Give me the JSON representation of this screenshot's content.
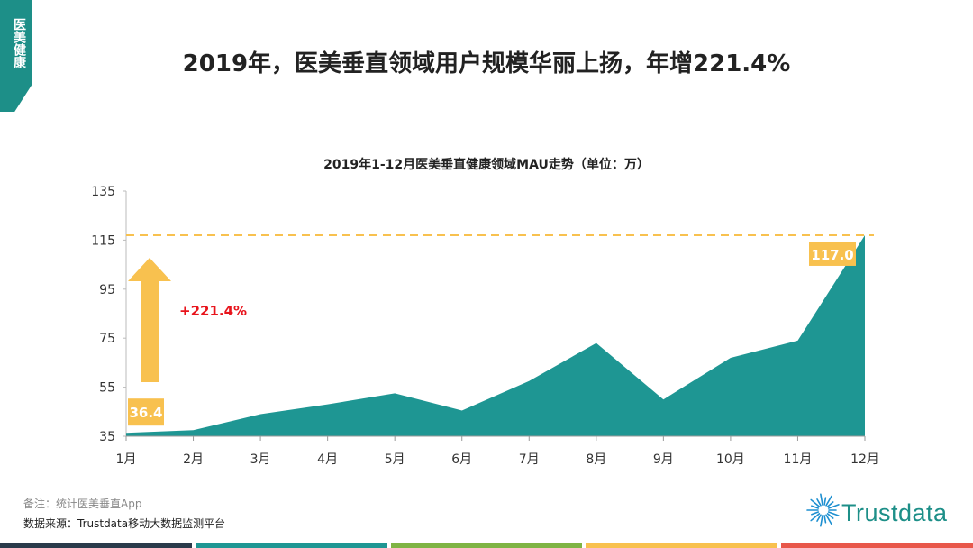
{
  "side_tab": {
    "label": "医美健康",
    "color": "#1d8f88"
  },
  "header": {
    "title": "2019年，医美垂直领域用户规模华丽上扬，年增221.4%"
  },
  "chart_data": {
    "type": "area",
    "title": "2019年1-12月医美垂直健康领域MAU走势（单位：万）",
    "categories": [
      "1月",
      "2月",
      "3月",
      "4月",
      "5月",
      "6月",
      "7月",
      "8月",
      "9月",
      "10月",
      "11月",
      "12月"
    ],
    "series": [
      {
        "values": [
          36.4,
          37.5,
          44,
          48,
          52.5,
          45.5,
          57.5,
          73,
          50,
          67,
          74,
          117.0
        ]
      }
    ],
    "ylim": [
      35,
      135
    ],
    "yticks": [
      35,
      55,
      75,
      95,
      115,
      135
    ],
    "reference_line": 117.0,
    "data_labels": {
      "first": "36.4",
      "last": "117.0"
    },
    "growth_annotation": "+221.4%",
    "colors": {
      "area": "#1e9693",
      "highlight": "#f8c14f",
      "growth_text": "#e8141c"
    },
    "grid": false
  },
  "footer": {
    "note": "备注：统计医美垂直App",
    "source": "数据来源：Trustdata移动大数据监测平台"
  },
  "brand": {
    "name": "Trustdata",
    "icon": "sunburst-logo-icon"
  },
  "bottom_bar_colors": [
    "#2a3a4a",
    "#1e9693",
    "#7fb444",
    "#f8c14f",
    "#e8574a"
  ]
}
